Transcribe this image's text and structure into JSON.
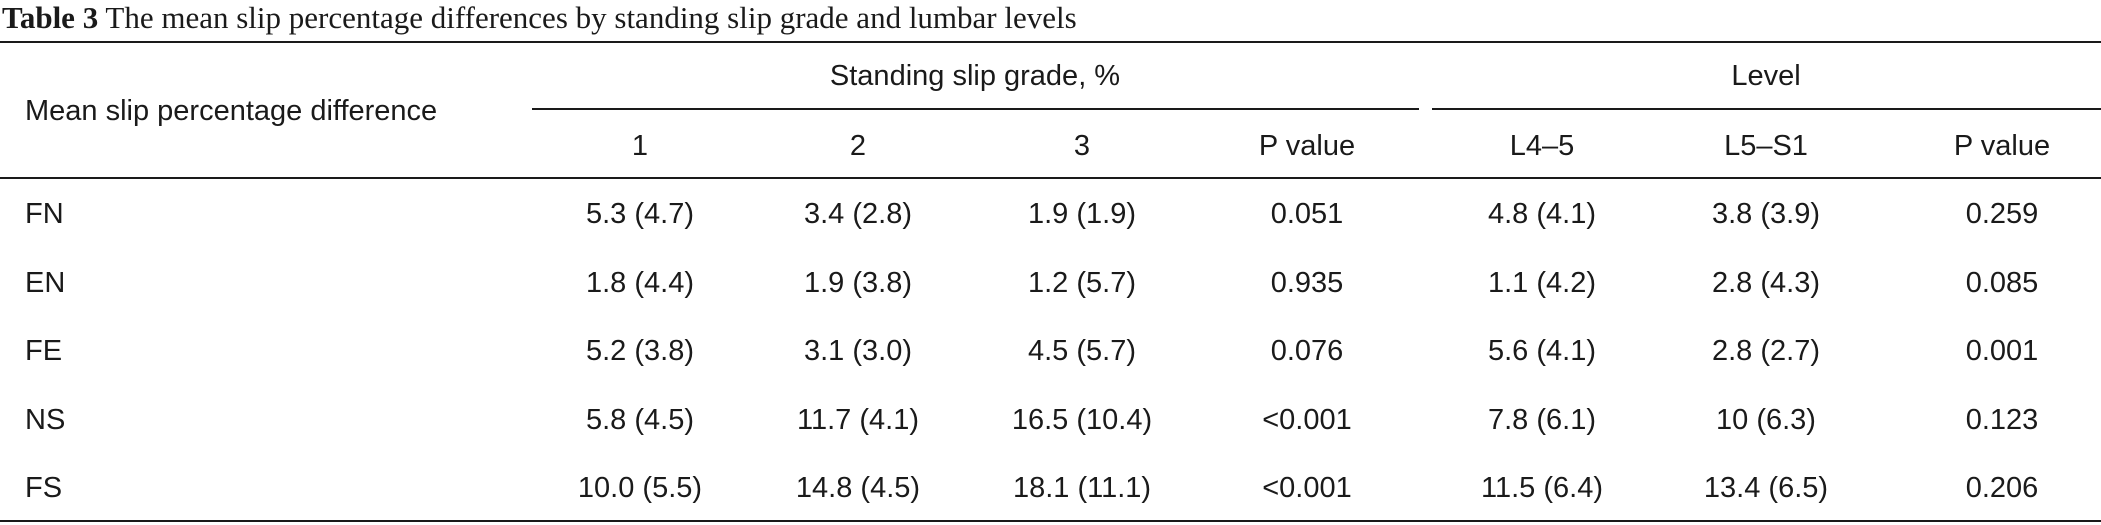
{
  "caption": {
    "label": "Table 3",
    "text": "The mean slip percentage differences by standing slip grade and lumbar levels"
  },
  "header": {
    "row_header": "Mean slip percentage difference",
    "group_grade": "Standing slip grade, %",
    "group_level": "Level",
    "columns": [
      "1",
      "2",
      "3",
      "P value",
      "L4–5",
      "L5–S1",
      "P value"
    ]
  },
  "rows": [
    {
      "label": "FN",
      "cells": [
        "5.3 (4.7)",
        "3.4 (2.8)",
        "1.9 (1.9)",
        "0.051",
        "4.8 (4.1)",
        "3.8 (3.9)",
        "0.259"
      ]
    },
    {
      "label": "EN",
      "cells": [
        "1.8 (4.4)",
        "1.9 (3.8)",
        "1.2 (5.7)",
        "0.935",
        "1.1 (4.2)",
        "2.8 (4.3)",
        "0.085"
      ]
    },
    {
      "label": "FE",
      "cells": [
        "5.2 (3.8)",
        "3.1 (3.0)",
        "4.5 (5.7)",
        "0.076",
        "5.6 (4.1)",
        "2.8 (2.7)",
        "0.001"
      ]
    },
    {
      "label": "NS",
      "cells": [
        "5.8 (4.5)",
        "11.7 (4.1)",
        "16.5 (10.4)",
        "<0.001",
        "7.8 (6.1)",
        "10 (6.3)",
        "0.123"
      ]
    },
    {
      "label": "FS",
      "cells": [
        "10.0 (5.5)",
        "14.8 (4.5)",
        "18.1 (11.1)",
        "<0.001",
        "11.5 (6.4)",
        "13.4 (6.5)",
        "0.206"
      ]
    }
  ]
}
